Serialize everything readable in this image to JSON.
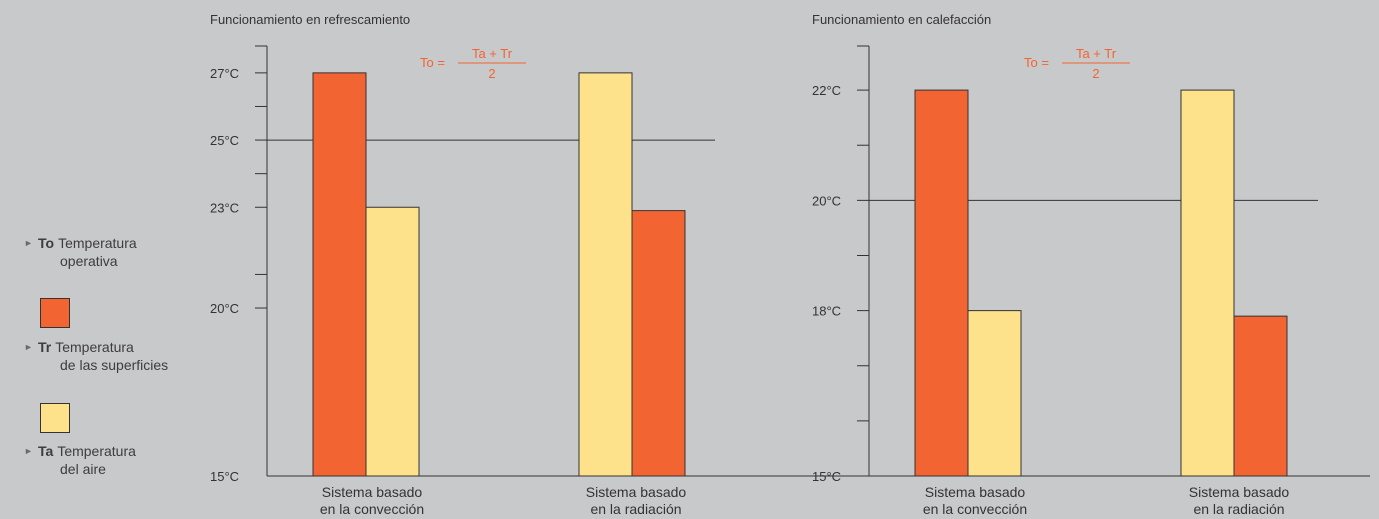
{
  "legend": {
    "items": [
      {
        "symbol": "To",
        "line1": "Temperatura",
        "line2": "operativa"
      },
      {
        "symbol": "Tr",
        "line1": "Temperatura",
        "line2": "de las superficies",
        "color": "#f26533"
      },
      {
        "symbol": "Ta",
        "line1": "Temperatura",
        "line2": "del aire",
        "color": "#fee18b"
      }
    ]
  },
  "formula": {
    "lhs": "To =",
    "numerator": "Ta + Tr",
    "denominator": "2",
    "color": "#f26533"
  },
  "chart_data": [
    {
      "type": "bar",
      "title": "Funcionamiento en refrescamiento",
      "categories": [
        "Sistema basado|en la convección",
        "Sistema basado|en la radiación"
      ],
      "series": [
        {
          "symbol": "Tr",
          "values": [
            27,
            null
          ],
          "color": "#f26533"
        },
        {
          "symbol": "Ta",
          "values": [
            23,
            27
          ],
          "color": "#fee18b"
        },
        {
          "symbol": "Tr",
          "values": [
            null,
            22.9
          ],
          "color": "#f26533"
        }
      ],
      "order": [
        [
          "Tr",
          "Ta"
        ],
        [
          "Ta",
          "Tr"
        ]
      ],
      "bars": [
        [
          27,
          23
        ],
        [
          27,
          22.9
        ]
      ],
      "reference_line": {
        "symbol": "To",
        "value": 25
      },
      "yticks_labeled": [
        "27°C",
        "25°C",
        "23°C",
        "20°C",
        "15°C"
      ],
      "ytick_values_labeled": [
        27,
        25,
        23,
        20,
        15
      ],
      "ytick_values_unlabeled": [
        26,
        24,
        21
      ],
      "ylim": [
        15,
        27.8
      ]
    },
    {
      "type": "bar",
      "title": "Funcionamiento en calefacción",
      "categories": [
        "Sistema basado|en la convección",
        "Sistema basado|en la radiación"
      ],
      "bars": [
        [
          22,
          18
        ],
        [
          22,
          17.9
        ]
      ],
      "order": [
        [
          "Tr",
          "Ta"
        ],
        [
          "Ta",
          "Tr"
        ]
      ],
      "reference_line": {
        "symbol": "To",
        "value": 20
      },
      "yticks_labeled": [
        "22°C",
        "20°C",
        "18°C",
        "15°C"
      ],
      "ytick_values_labeled": [
        22,
        20,
        18,
        15
      ],
      "ytick_values_unlabeled": [
        21,
        19,
        17,
        16
      ],
      "ylim": [
        15,
        22.8
      ]
    }
  ]
}
